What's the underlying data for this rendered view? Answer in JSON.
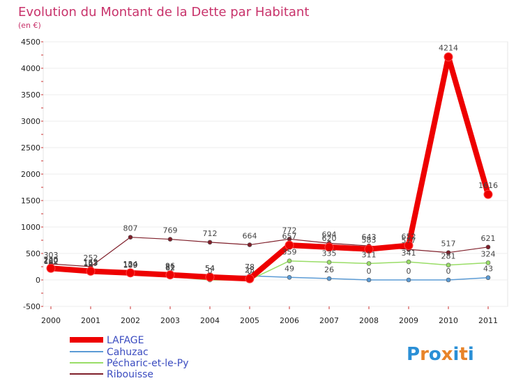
{
  "title": "Evolution du Montant de la Dette par Habitant",
  "subtitle": "(en €)",
  "logo": "Proxiti",
  "colors": {
    "title": "#c8336b",
    "legend_text": "#3b4cc0",
    "plot_border": "#e6e6e6",
    "grid": "#ececec"
  },
  "chart_data": {
    "type": "line",
    "title": "Evolution du Montant de la Dette par Habitant",
    "subtitle": "(en €)",
    "xlabel": "",
    "ylabel": "",
    "x": [
      "2000",
      "2001",
      "2002",
      "2003",
      "2004",
      "2005",
      "2006",
      "2007",
      "2008",
      "2009",
      "2010",
      "2011"
    ],
    "ylim": [
      -500,
      4500
    ],
    "yticks": [
      -500,
      0,
      500,
      1000,
      1500,
      2000,
      2500,
      3000,
      3500,
      4000,
      4500
    ],
    "grid": true,
    "legend_position": "bottom-left",
    "series": [
      {
        "name": "LAFAGE",
        "color": "#ee0000",
        "values": [
          220,
          165,
          134,
          96,
          54,
          23,
          657,
          620,
          583,
          652,
          4214,
          1616
        ],
        "labels": [
          "220",
          "165",
          "134",
          "96",
          "54",
          "23",
          "657",
          "620",
          "583",
          "652",
          "4214",
          "1616"
        ]
      },
      {
        "name": "Cahuzac",
        "color": "#5b9bd5",
        "values": [
          182,
          147,
          109,
          81,
          54,
          78,
          49,
          26,
          0,
          0,
          0,
          43
        ],
        "labels": [
          "182",
          "147",
          "109",
          "81",
          "54",
          "78",
          "49",
          "26",
          "0",
          "0",
          "0",
          "43"
        ]
      },
      {
        "name": "Pécharic-et-le-Py",
        "color": "#99dd66",
        "values": [
          200,
          153,
          120,
          62,
          0,
          0,
          359,
          335,
          311,
          341,
          281,
          324
        ],
        "labels": [
          "200",
          "153",
          "120",
          "62",
          "0",
          "0",
          "359",
          "335",
          "311",
          "341",
          "281",
          "324"
        ]
      },
      {
        "name": "Ribouisse",
        "color": "#7f1f2a",
        "values": [
          303,
          252,
          807,
          769,
          712,
          664,
          772,
          694,
          643,
          577,
          517,
          621
        ],
        "labels": [
          "303",
          "252",
          "807",
          "769",
          "712",
          "664",
          "772",
          "694",
          "643",
          "577",
          "517",
          "621"
        ]
      }
    ]
  }
}
